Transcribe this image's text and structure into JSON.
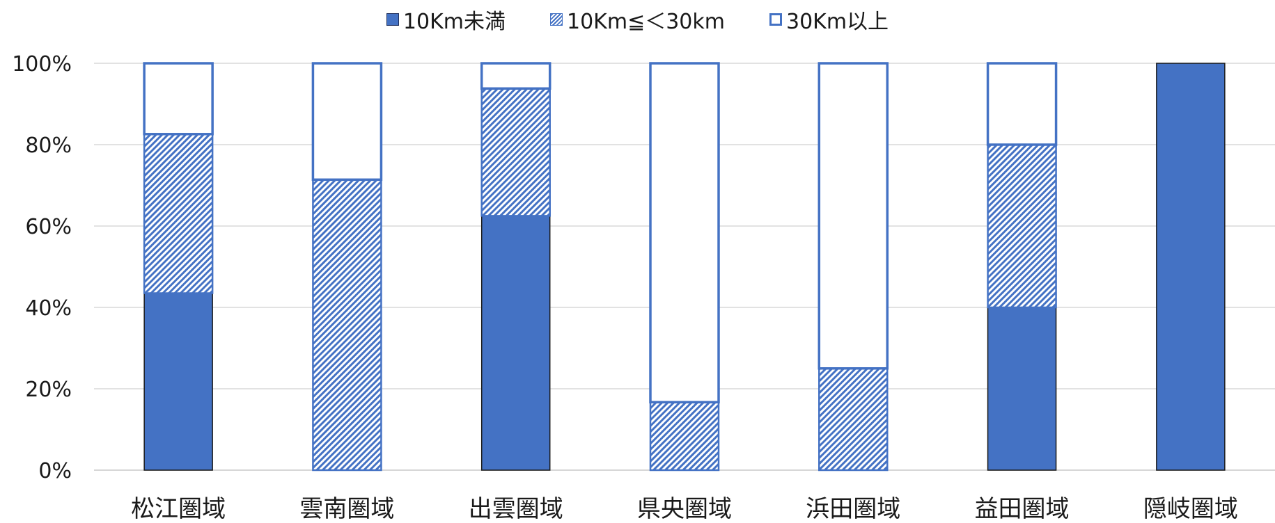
{
  "chart_data": {
    "type": "bar",
    "stacked": true,
    "percent": true,
    "categories": [
      "松江圏域",
      "雲南圏域",
      "出雲圏域",
      "県央圏域",
      "浜田圏域",
      "益田圏域",
      "隠岐圏域"
    ],
    "series": [
      {
        "name": "10Km未満",
        "values": [
          43.5,
          0,
          62.5,
          0,
          0,
          40,
          100
        ],
        "style": "solid",
        "color": "#4472C4"
      },
      {
        "name": "10Km≦＜30km",
        "values": [
          39.1,
          71.4,
          31.3,
          16.7,
          25,
          40,
          0
        ],
        "style": "hatch",
        "color": "#4472C4"
      },
      {
        "name": "30Km以上",
        "values": [
          17.4,
          28.6,
          6.2,
          83.3,
          75,
          20,
          0
        ],
        "style": "outline",
        "color": "#4472C4"
      }
    ],
    "y_ticks": [
      "0%",
      "20%",
      "40%",
      "60%",
      "80%",
      "100%"
    ],
    "ylim": [
      0,
      100
    ],
    "grid": true,
    "legend": "top-center"
  }
}
